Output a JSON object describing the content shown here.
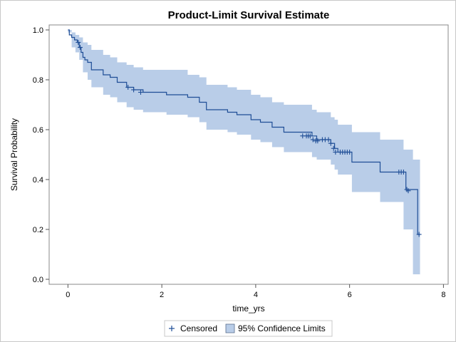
{
  "chart_data": {
    "type": "line",
    "title": "Product-Limit Survival Estimate",
    "xlabel": "time_yrs",
    "ylabel": "Survival Probability",
    "xlim": [
      -0.4,
      8.1
    ],
    "ylim": [
      -0.02,
      1.02
    ],
    "xticks": [
      0,
      2,
      4,
      6,
      8
    ],
    "yticks": [
      "0.0",
      "0.2",
      "0.4",
      "0.6",
      "0.8",
      "1.0"
    ],
    "legend": {
      "placement": "bottom",
      "entries": [
        "Censored",
        "95% Confidence Limits"
      ]
    },
    "colors": {
      "line": "#1f4e96",
      "band": "#b9cde8",
      "censor": "#1f4e96"
    },
    "series": [
      {
        "label_key": "survival",
        "steps": [
          [
            0,
            1.0
          ],
          [
            0.03,
            0.98
          ],
          [
            0.08,
            0.97
          ],
          [
            0.14,
            0.96
          ],
          [
            0.2,
            0.95
          ],
          [
            0.24,
            0.93
          ],
          [
            0.28,
            0.91
          ],
          [
            0.32,
            0.89
          ],
          [
            0.36,
            0.88
          ],
          [
            0.42,
            0.87
          ],
          [
            0.5,
            0.84
          ],
          [
            0.75,
            0.82
          ],
          [
            0.9,
            0.81
          ],
          [
            1.05,
            0.79
          ],
          [
            1.25,
            0.77
          ],
          [
            1.4,
            0.76
          ],
          [
            1.6,
            0.75
          ],
          [
            2.1,
            0.75
          ],
          [
            2.1,
            0.74
          ],
          [
            2.55,
            0.73
          ],
          [
            2.8,
            0.71
          ],
          [
            2.95,
            0.68
          ],
          [
            3.4,
            0.67
          ],
          [
            3.6,
            0.66
          ],
          [
            3.9,
            0.64
          ],
          [
            4.1,
            0.63
          ],
          [
            4.35,
            0.61
          ],
          [
            4.6,
            0.6
          ],
          [
            4.6,
            0.59
          ],
          [
            5.2,
            0.575
          ],
          [
            5.3,
            0.56
          ],
          [
            5.6,
            0.545
          ],
          [
            5.68,
            0.525
          ],
          [
            5.75,
            0.51
          ],
          [
            6.05,
            0.47
          ],
          [
            6.65,
            0.43
          ],
          [
            7.15,
            0.43
          ],
          [
            7.2,
            0.36
          ],
          [
            7.35,
            0.36
          ],
          [
            7.45,
            0.18
          ],
          [
            7.5,
            0.18
          ]
        ],
        "band": [
          [
            0,
            0.99,
            1.0
          ],
          [
            0.08,
            0.93,
            0.99
          ],
          [
            0.16,
            0.91,
            0.98
          ],
          [
            0.24,
            0.88,
            0.97
          ],
          [
            0.32,
            0.83,
            0.95
          ],
          [
            0.42,
            0.8,
            0.94
          ],
          [
            0.5,
            0.77,
            0.92
          ],
          [
            0.75,
            0.74,
            0.9
          ],
          [
            0.9,
            0.73,
            0.89
          ],
          [
            1.05,
            0.71,
            0.87
          ],
          [
            1.25,
            0.69,
            0.86
          ],
          [
            1.4,
            0.68,
            0.85
          ],
          [
            1.6,
            0.67,
            0.84
          ],
          [
            2.1,
            0.66,
            0.84
          ],
          [
            2.55,
            0.65,
            0.82
          ],
          [
            2.8,
            0.63,
            0.81
          ],
          [
            2.95,
            0.6,
            0.78
          ],
          [
            3.4,
            0.59,
            0.77
          ],
          [
            3.6,
            0.58,
            0.76
          ],
          [
            3.9,
            0.56,
            0.74
          ],
          [
            4.1,
            0.55,
            0.73
          ],
          [
            4.35,
            0.53,
            0.71
          ],
          [
            4.6,
            0.51,
            0.7
          ],
          [
            5.2,
            0.49,
            0.68
          ],
          [
            5.3,
            0.48,
            0.67
          ],
          [
            5.6,
            0.46,
            0.65
          ],
          [
            5.68,
            0.44,
            0.64
          ],
          [
            5.75,
            0.42,
            0.62
          ],
          [
            6.05,
            0.35,
            0.59
          ],
          [
            6.65,
            0.31,
            0.56
          ],
          [
            7.15,
            0.2,
            0.52
          ],
          [
            7.35,
            0.02,
            0.48
          ],
          [
            7.5,
            0.02,
            0.48
          ]
        ],
        "censored": [
          [
            0.22,
            0.95
          ],
          [
            0.26,
            0.93
          ],
          [
            1.28,
            0.77
          ],
          [
            1.4,
            0.76
          ],
          [
            1.55,
            0.75
          ],
          [
            5.0,
            0.575
          ],
          [
            5.08,
            0.575
          ],
          [
            5.12,
            0.575
          ],
          [
            5.16,
            0.575
          ],
          [
            5.22,
            0.56
          ],
          [
            5.28,
            0.555
          ],
          [
            5.32,
            0.555
          ],
          [
            5.42,
            0.56
          ],
          [
            5.48,
            0.56
          ],
          [
            5.55,
            0.56
          ],
          [
            5.6,
            0.545
          ],
          [
            5.66,
            0.525
          ],
          [
            5.7,
            0.51
          ],
          [
            5.8,
            0.51
          ],
          [
            5.85,
            0.51
          ],
          [
            5.9,
            0.51
          ],
          [
            5.95,
            0.51
          ],
          [
            6.0,
            0.51
          ],
          [
            7.05,
            0.43
          ],
          [
            7.1,
            0.43
          ],
          [
            7.15,
            0.43
          ],
          [
            7.22,
            0.36
          ],
          [
            7.25,
            0.355
          ],
          [
            7.48,
            0.18
          ]
        ]
      }
    ]
  }
}
